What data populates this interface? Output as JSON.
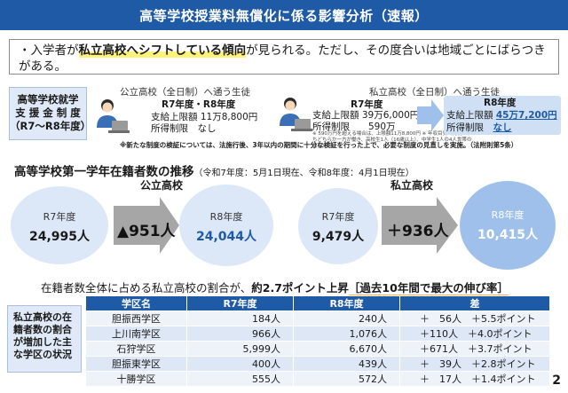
{
  "title": "高等学校授業料無償化に係る影響分析（速報）",
  "lead": {
    "bullet": "・",
    "pre": "入学者が",
    "highlight": "私立高校へシフトしている傾向",
    "post": "が見られる。ただし、その度合いは地域ごとにばらつきがある。"
  },
  "support": {
    "label_l1": "高等学校就学",
    "label_l2": "支 援 金 制 度",
    "label_l3": "（R7～R8年度）",
    "public": {
      "heading": "公立高校（全日制）へ通う生徒",
      "year": "R7年度・R8年度",
      "line1": "支給上限額 11万8,800円",
      "line2": "所得制限　なし"
    },
    "private": {
      "heading": "私立高校（全日制）へ通う生徒",
      "year": "R7年度",
      "line1": "支給上限額 39万6,000円",
      "line2": "所得制限　　590万",
      "note": "※ 590万円を超える場合は、上限額11万8,800円 ※ 年収目安（両親のうちどちらか一方が働き、高校生1人（16歳以上）、中学生1人の4人世帯の目安）"
    },
    "r8": {
      "year": "R8年度",
      "line1_label": "支給上限額 ",
      "line1_value": "45万7,200円",
      "line2_label": "所得制限　",
      "line2_value": "なし"
    },
    "footnote": "※新たな制度の検証については、法施行後、3年以内の期間に十分な検証を行った上で、必要な制度の見直しを実施。（法附則第5条）"
  },
  "enrollment": {
    "title": "高等学校第一学年在籍者数の推移",
    "subtitle": "（令和7年度：5月1日現在、令和8年度：4月1日現在）",
    "public": {
      "label": "公立高校",
      "r7_year": "R7年度",
      "r7_value": "24,995人",
      "diff": "▲951人",
      "r8_year": "R8年度",
      "r8_value": "24,044人"
    },
    "private": {
      "label": "私立高校",
      "r7_year": "R7年度",
      "r7_value": "9,479人",
      "diff": "＋936人",
      "r8_year": "R8年度",
      "r8_value": "10,415人"
    }
  },
  "ratio": {
    "pre": "在籍者数全体に占める私立高校の割合が、",
    "em": "約2.7ポイント上昇",
    "box": "［過去10年間で最大の伸び率］"
  },
  "area": {
    "label_l1": "私立高校の在",
    "label_l2": "籍者数の割合",
    "label_l3": "が増加した主",
    "label_l4": "な学区の状況",
    "headers": [
      "学区名",
      "R7年度",
      "R8年度",
      "差"
    ],
    "rows": [
      {
        "name": "胆振西学区",
        "r7": "184人",
        "r8": "240人",
        "diff": "＋　56人　＋5.5ポイント"
      },
      {
        "name": "上川南学区",
        "r7": "966人",
        "r8": "1,076人",
        "diff": "＋110人　＋4.0ポイント"
      },
      {
        "name": "石狩学区",
        "r7": "5,999人",
        "r8": "6,670人",
        "diff": "＋671人　＋3.7ポイント"
      },
      {
        "name": "胆振東学区",
        "r7": "400人",
        "r8": "439人",
        "diff": "＋　39人　＋2.8ポイント"
      },
      {
        "name": "十勝学区",
        "r7": "555人",
        "r8": "572人",
        "diff": "＋　17人　＋1.4ポイント"
      }
    ]
  },
  "page_number": "2",
  "colors": {
    "accent": "#1f5aa6",
    "light": "#dce8f7",
    "highlight": "#fff27a",
    "arrow": "#a6a6a6"
  }
}
